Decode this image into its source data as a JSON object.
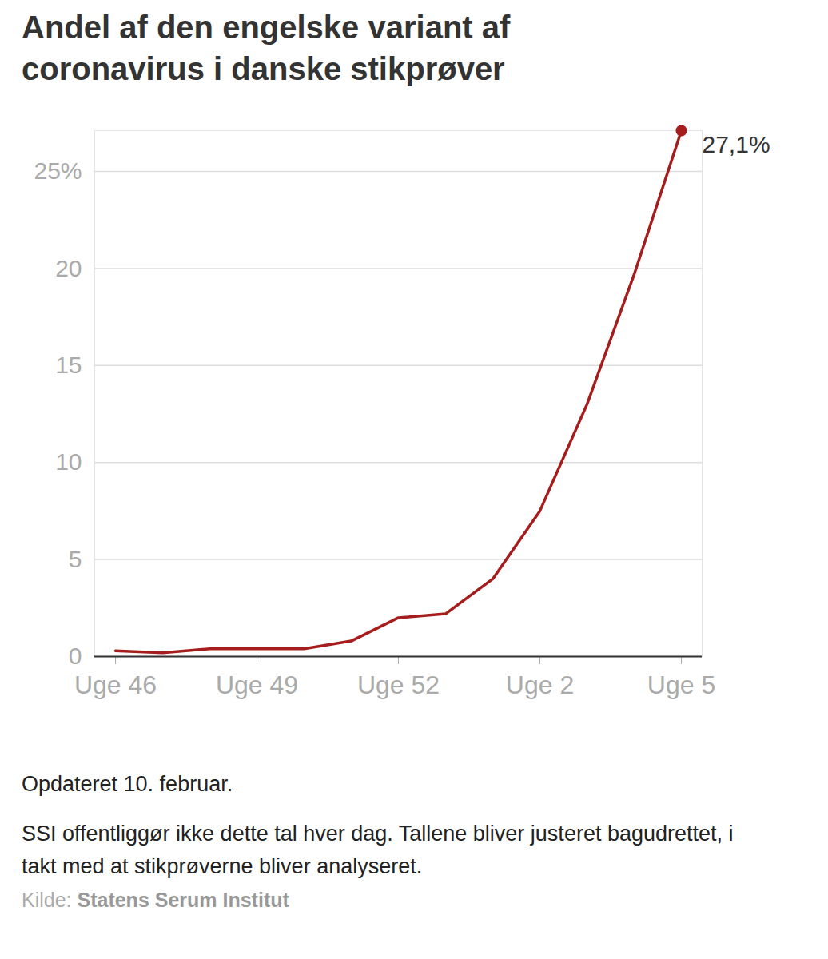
{
  "chart_data": {
    "type": "line",
    "title": "Andel af den engelske variant af coronavirus i danske stikprøver",
    "categories": [
      "Uge 46",
      null,
      null,
      "Uge 49",
      null,
      null,
      "Uge 52",
      null,
      null,
      "Uge 2",
      null,
      null,
      "Uge 5"
    ],
    "values": [
      0.3,
      0.2,
      0.4,
      0.4,
      0.4,
      0.8,
      2.0,
      2.2,
      4.0,
      7.5,
      13.0,
      19.7,
      27.1
    ],
    "value_labels": [
      null,
      null,
      null,
      null,
      null,
      null,
      null,
      null,
      null,
      null,
      null,
      null,
      "27,1%"
    ],
    "data_labels": true,
    "color": "#a51d1d",
    "ylim": [
      0,
      27.1
    ],
    "yticks": [
      0,
      5,
      10,
      15,
      20,
      {
        "value": 25,
        "label": "25%"
      }
    ],
    "grid": true,
    "updated": "Opdateret 10. februar.",
    "note": "SSI offentliggør ikke dette tal hver dag. Tallene bliver justeret bagudrettet, i takt med at stikprøverne bliver analyseret.",
    "source_label": "Kilde:",
    "source": "Statens Serum Institut"
  }
}
